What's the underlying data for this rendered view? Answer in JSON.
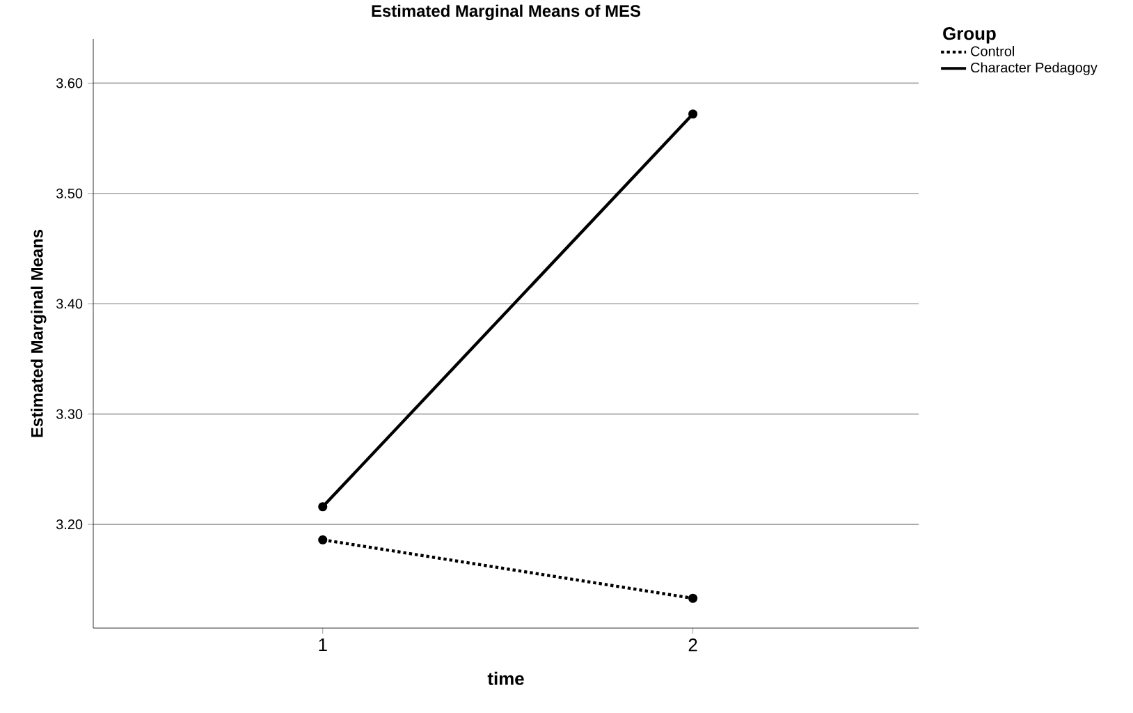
{
  "chart_data": {
    "type": "line",
    "title": "Estimated Marginal Means of MES",
    "xlabel": "time",
    "ylabel": "Estimated Marginal Means",
    "legend_title": "Group",
    "categories": [
      "1",
      "2"
    ],
    "series": [
      {
        "name": "Control",
        "color": "#000000",
        "values": [
          3.186,
          3.133
        ],
        "line_style": "dotted"
      },
      {
        "name": "Character Pedagogy",
        "color": "#000000",
        "values": [
          3.216,
          3.572
        ],
        "line_style": "solid"
      }
    ],
    "ylim": [
      3.106,
      3.64
    ],
    "yticks": [
      {
        "value": 3.2,
        "label": "3.20"
      },
      {
        "value": 3.3,
        "label": "3.30"
      },
      {
        "value": 3.4,
        "label": "3.40"
      },
      {
        "value": 3.5,
        "label": "3.50"
      },
      {
        "value": 3.6,
        "label": "3.60"
      }
    ],
    "grid": "y",
    "legend": "top right",
    "marker": "circle"
  }
}
